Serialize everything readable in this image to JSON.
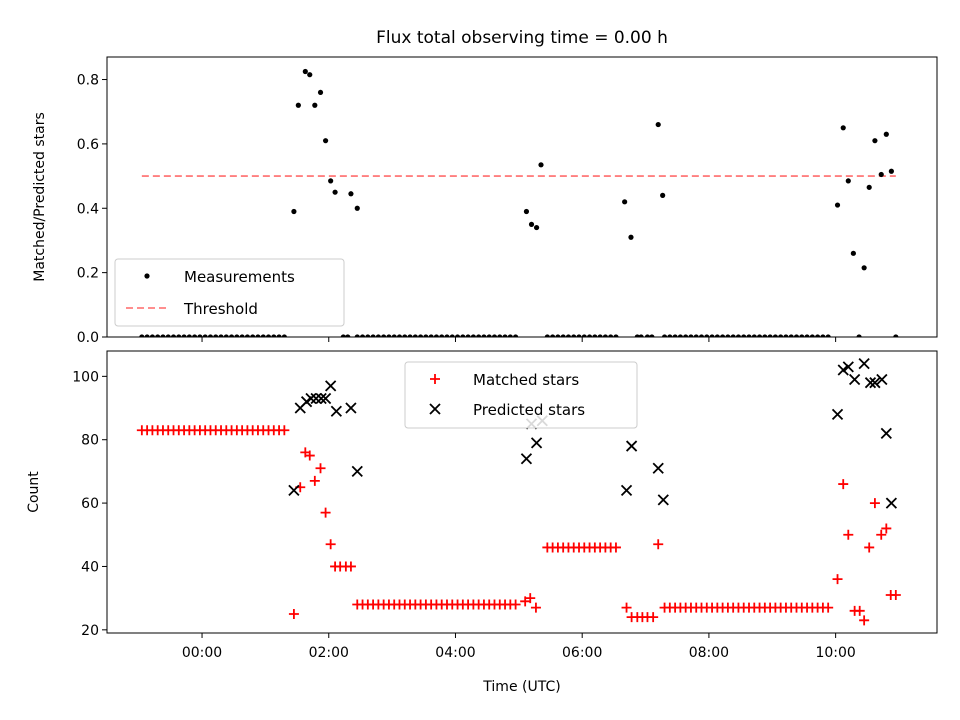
{
  "chart_data": [
    {
      "type": "scatter",
      "title": "Flux total observing time = 0.00 h",
      "xlabel": "",
      "ylabel": "Matched/Predicted stars",
      "xlim": [
        -1.5,
        11.6
      ],
      "ylim": [
        0,
        0.87
      ],
      "yticks": [
        0.0,
        0.2,
        0.4,
        0.6,
        0.8
      ],
      "ytick_labels": [
        "0.0",
        "0.2",
        "0.4",
        "0.6",
        "0.8"
      ],
      "xticks": [
        0,
        2,
        4,
        6,
        8,
        10
      ],
      "colors": {
        "measurements": "#000000",
        "threshold": "#ff7f7f"
      },
      "legend": {
        "position": "lower-left",
        "entries": [
          {
            "label": "Measurements",
            "marker": "dot"
          },
          {
            "label": "Threshold",
            "marker": "dashed-line"
          }
        ]
      },
      "series": [
        {
          "name": "Measurements",
          "kind": "scatter",
          "ranges": [
            {
              "from": -0.95,
              "to": 1.35,
              "step": 0.0833,
              "y": 0
            },
            {
              "from": 2.45,
              "to": 5.0,
              "step": 0.0833,
              "y": 0
            },
            {
              "from": 5.45,
              "to": 6.6,
              "step": 0.0833,
              "y": 0
            },
            {
              "from": 7.3,
              "to": 9.95,
              "step": 0.0833,
              "y": 0
            }
          ],
          "points": [
            [
              1.45,
              0.39
            ],
            [
              1.52,
              0.72
            ],
            [
              1.63,
              0.825
            ],
            [
              1.7,
              0.815
            ],
            [
              1.78,
              0.72
            ],
            [
              1.87,
              0.76
            ],
            [
              1.95,
              0.61
            ],
            [
              2.03,
              0.485
            ],
            [
              2.1,
              0.45
            ],
            [
              2.23,
              0.0
            ],
            [
              2.3,
              0.0
            ],
            [
              2.35,
              0.445
            ],
            [
              2.45,
              0.4
            ],
            [
              5.12,
              0.39
            ],
            [
              5.2,
              0.35
            ],
            [
              5.28,
              0.34
            ],
            [
              5.35,
              0.535
            ],
            [
              6.67,
              0.42
            ],
            [
              6.77,
              0.31
            ],
            [
              6.87,
              0.0
            ],
            [
              6.93,
              0.0
            ],
            [
              7.03,
              0.0
            ],
            [
              7.1,
              0.0
            ],
            [
              7.2,
              0.66
            ],
            [
              7.27,
              0.44
            ],
            [
              10.03,
              0.41
            ],
            [
              10.12,
              0.65
            ],
            [
              10.2,
              0.485
            ],
            [
              10.28,
              0.26
            ],
            [
              10.37,
              0.0
            ],
            [
              10.45,
              0.215
            ],
            [
              10.53,
              0.465
            ],
            [
              10.62,
              0.61
            ],
            [
              10.72,
              0.505
            ],
            [
              10.8,
              0.63
            ],
            [
              10.88,
              0.515
            ],
            [
              10.95,
              0.0
            ]
          ]
        },
        {
          "name": "Threshold",
          "kind": "line",
          "x": [
            -0.95,
            10.95
          ],
          "y": [
            0.5,
            0.5
          ]
        }
      ]
    },
    {
      "type": "scatter",
      "title": "",
      "xlabel": "Time (UTC)",
      "ylabel": "Count",
      "xlim": [
        -1.5,
        11.6
      ],
      "ylim": [
        19,
        108
      ],
      "yticks": [
        20,
        40,
        60,
        80,
        100
      ],
      "ytick_labels": [
        "20",
        "40",
        "60",
        "80",
        "100"
      ],
      "xticks": [
        0,
        2,
        4,
        6,
        8,
        10
      ],
      "xtick_labels": [
        "00:00",
        "02:00",
        "04:00",
        "06:00",
        "08:00",
        "10:00"
      ],
      "colors": {
        "matched": "#ff0000",
        "predicted": "#000000"
      },
      "legend": {
        "position": "top-center",
        "entries": [
          {
            "label": "Matched stars",
            "marker": "plus"
          },
          {
            "label": "Predicted stars",
            "marker": "x"
          }
        ]
      },
      "series": [
        {
          "name": "Matched stars",
          "kind": "scatter",
          "ranges": [
            {
              "from": -0.95,
              "to": 1.35,
              "step": 0.0833,
              "y": 83
            },
            {
              "from": 2.45,
              "to": 5.0,
              "step": 0.0833,
              "y": 28
            },
            {
              "from": 5.45,
              "to": 6.6,
              "step": 0.0833,
              "y": 46
            },
            {
              "from": 7.3,
              "to": 9.95,
              "step": 0.0833,
              "y": 27
            }
          ],
          "points": [
            [
              1.45,
              25
            ],
            [
              1.55,
              65
            ],
            [
              1.63,
              76
            ],
            [
              1.7,
              75
            ],
            [
              1.78,
              67
            ],
            [
              1.87,
              71
            ],
            [
              1.95,
              57
            ],
            [
              2.03,
              47
            ],
            [
              2.1,
              40
            ],
            [
              2.18,
              40
            ],
            [
              2.27,
              40
            ],
            [
              2.35,
              40
            ],
            [
              5.1,
              29
            ],
            [
              5.18,
              30
            ],
            [
              5.27,
              27
            ],
            [
              6.7,
              27
            ],
            [
              6.78,
              24
            ],
            [
              6.87,
              24
            ],
            [
              6.95,
              24
            ],
            [
              7.03,
              24
            ],
            [
              7.12,
              24
            ],
            [
              7.2,
              47
            ],
            [
              10.03,
              36
            ],
            [
              10.12,
              66
            ],
            [
              10.2,
              50
            ],
            [
              10.3,
              26
            ],
            [
              10.38,
              26
            ],
            [
              10.45,
              23
            ],
            [
              10.53,
              46
            ],
            [
              10.62,
              60
            ],
            [
              10.72,
              50
            ],
            [
              10.8,
              52
            ],
            [
              10.87,
              31
            ],
            [
              10.95,
              31
            ]
          ]
        },
        {
          "name": "Predicted stars",
          "kind": "scatter",
          "points": [
            [
              1.45,
              64
            ],
            [
              1.55,
              90
            ],
            [
              1.65,
              92
            ],
            [
              1.72,
              93
            ],
            [
              1.8,
              93
            ],
            [
              1.88,
              93
            ],
            [
              1.95,
              93
            ],
            [
              2.03,
              97
            ],
            [
              2.12,
              89
            ],
            [
              2.35,
              90
            ],
            [
              2.45,
              70
            ],
            [
              5.12,
              74
            ],
            [
              5.2,
              85
            ],
            [
              5.28,
              79
            ],
            [
              5.37,
              86
            ],
            [
              6.7,
              64
            ],
            [
              6.78,
              78
            ],
            [
              7.2,
              71
            ],
            [
              7.28,
              61
            ],
            [
              10.03,
              88
            ],
            [
              10.12,
              102
            ],
            [
              10.2,
              103
            ],
            [
              10.3,
              99
            ],
            [
              10.45,
              104
            ],
            [
              10.55,
              98
            ],
            [
              10.62,
              98
            ],
            [
              10.73,
              99
            ],
            [
              10.8,
              82
            ],
            [
              10.88,
              60
            ]
          ]
        }
      ]
    }
  ]
}
